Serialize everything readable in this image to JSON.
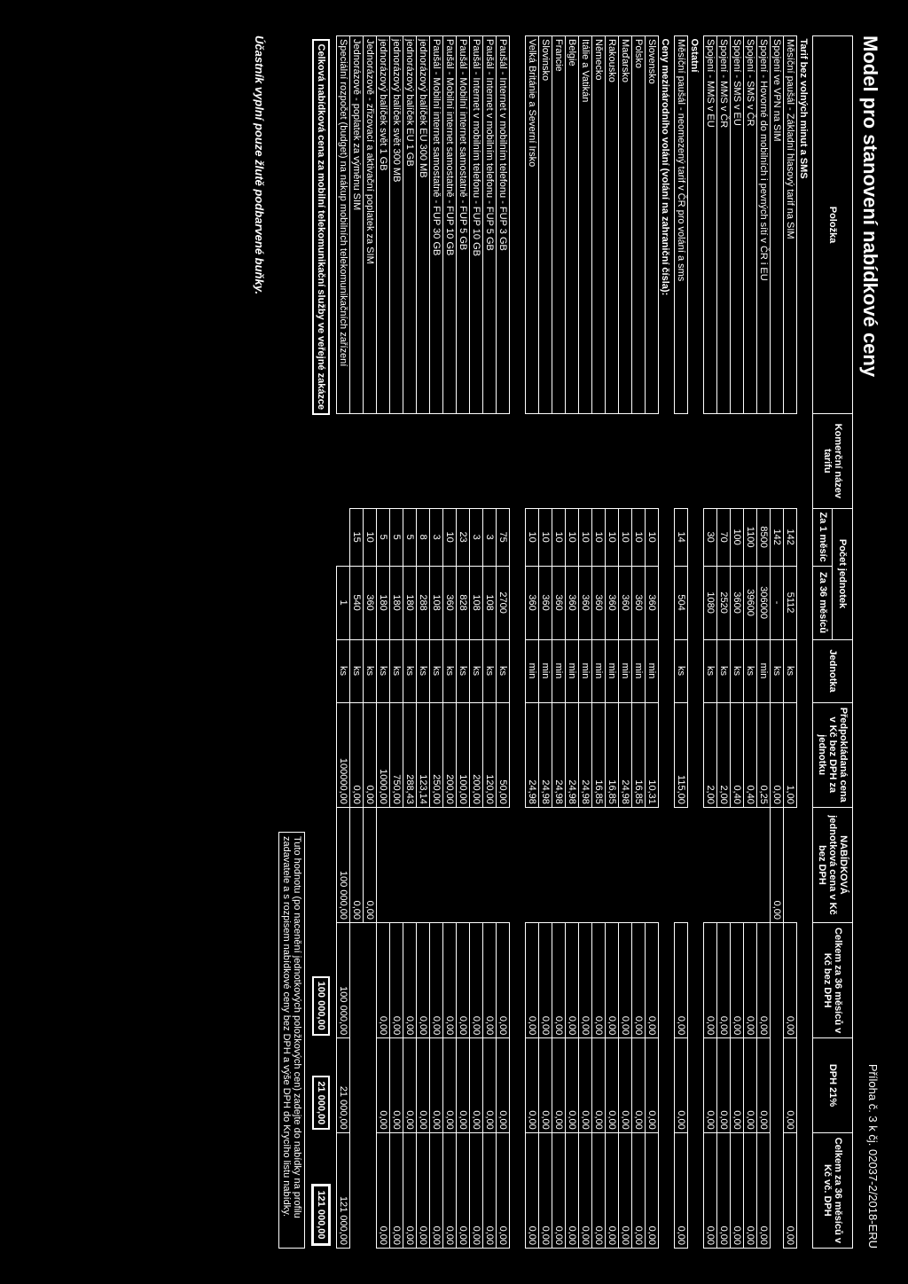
{
  "meta": {
    "title": "Model pro stanovení nabídkové ceny",
    "appendix": "Příloha č. 3 k čj. 02037-2/2018-ERU",
    "instruction": "Účastník vyplní pouze žlutě podbarvené buňky.",
    "footnote": "Tuto hodnotu (po nacenění jednotkových položkových cen) zadejte do nabídky na profilu zadavatele a s rozpisem nabídkové ceny bez DPH a výše DPH do Krycího listu nabídky.",
    "total_label": "Celková nabídková cena za mobilní telekomunikační služby ve veřejné zakázce"
  },
  "headers": {
    "polozka": "Položka",
    "komercni": "Komerční název tarifu",
    "pocet": "Počet jednotek",
    "za1": "Za 1 měsíc",
    "za36": "Za 36 měsíců",
    "jednotka": "Jednotka",
    "predpokladana": "Předpokládaná cena v Kč bez DPH za jednotku",
    "nabidkova": "NABÍDKOVÁ jednotková cena v Kč bez DPH",
    "celkem36bez": "Celkem za 36 měsíců v Kč bez DPH",
    "dph": "DPH 21%",
    "celkem36s": "Celkem za 36 měsíců v Kč vč. DPH"
  },
  "sections": [
    {
      "title": "Tarif bez volných minut a SMS",
      "rows": [
        {
          "label": "Měsíční paušál - Základní hlasový tarif na SIM",
          "m1": "142",
          "m36": "5112",
          "unit": "ks",
          "pred": "1,00",
          "nab": "",
          "c36": "0,00",
          "dph": "0,00",
          "c36s": "0,00"
        },
        {
          "label": "Spojení ve VPN na SIM",
          "m1": "142",
          "m36": "-",
          "unit": "ks",
          "pred": "0,00",
          "nab": "0,00",
          "c36": "",
          "dph": "",
          "c36s": ""
        },
        {
          "label": "Spojení - Hovorné do mobilních i pevných sítí v ČR i EU",
          "m1": "8500",
          "m36": "306000",
          "unit": "min",
          "pred": "0,25",
          "nab": "",
          "c36": "0,00",
          "dph": "0,00",
          "c36s": "0,00"
        },
        {
          "label": "Spojení - SMS v ČR",
          "m1": "1100",
          "m36": "39600",
          "unit": "ks",
          "pred": "0,40",
          "nab": "",
          "c36": "0,00",
          "dph": "0,00",
          "c36s": "0,00"
        },
        {
          "label": "Spojení - SMS v EU",
          "m1": "100",
          "m36": "3600",
          "unit": "ks",
          "pred": "0,40",
          "nab": "",
          "c36": "0,00",
          "dph": "0,00",
          "c36s": "0,00"
        },
        {
          "label": "Spojení - MMS v ČR",
          "m1": "70",
          "m36": "2520",
          "unit": "ks",
          "pred": "2,00",
          "nab": "",
          "c36": "0,00",
          "dph": "0,00",
          "c36s": "0,00"
        },
        {
          "label": "Spojení - MMS v EU",
          "m1": "30",
          "m36": "1080",
          "unit": "ks",
          "pred": "2,00",
          "nab": "",
          "c36": "0,00",
          "dph": "0,00",
          "c36s": "0,00"
        }
      ]
    },
    {
      "title": "Ostatní",
      "rows": [
        {
          "label": "Měsíční paušál - neomezený tarif v ČR pro volání a sms",
          "m1": "14",
          "m36": "504",
          "unit": "ks",
          "pred": "115,00",
          "nab": "",
          "c36": "0,00",
          "dph": "0,00",
          "c36s": "0,00"
        }
      ]
    },
    {
      "title": "Ceny mezinárodního volání (volání na zahraniční čísla):",
      "rows": [
        {
          "label": "Slovensko",
          "m1": "10",
          "m36": "360",
          "unit": "min",
          "pred": "10,31",
          "nab": "",
          "c36": "0,00",
          "dph": "0,00",
          "c36s": "0,00"
        },
        {
          "label": "Polsko",
          "m1": "10",
          "m36": "360",
          "unit": "min",
          "pred": "16,85",
          "nab": "",
          "c36": "0,00",
          "dph": "0,00",
          "c36s": "0,00"
        },
        {
          "label": "Maďarsko",
          "m1": "10",
          "m36": "360",
          "unit": "min",
          "pred": "24,98",
          "nab": "",
          "c36": "0,00",
          "dph": "0,00",
          "c36s": "0,00"
        },
        {
          "label": "Rakousko",
          "m1": "10",
          "m36": "360",
          "unit": "min",
          "pred": "16,85",
          "nab": "",
          "c36": "0,00",
          "dph": "0,00",
          "c36s": "0,00"
        },
        {
          "label": "Německo",
          "m1": "10",
          "m36": "360",
          "unit": "min",
          "pred": "16,85",
          "nab": "",
          "c36": "0,00",
          "dph": "0,00",
          "c36s": "0,00"
        },
        {
          "label": "Itálie a Vatikán",
          "m1": "10",
          "m36": "360",
          "unit": "min",
          "pred": "24,98",
          "nab": "",
          "c36": "0,00",
          "dph": "0,00",
          "c36s": "0,00"
        },
        {
          "label": "Belgie",
          "m1": "10",
          "m36": "360",
          "unit": "min",
          "pred": "24,98",
          "nab": "",
          "c36": "0,00",
          "dph": "0,00",
          "c36s": "0,00"
        },
        {
          "label": "Francie",
          "m1": "10",
          "m36": "360",
          "unit": "min",
          "pred": "24,98",
          "nab": "",
          "c36": "0,00",
          "dph": "0,00",
          "c36s": "0,00"
        },
        {
          "label": "Slovinsko",
          "m1": "10",
          "m36": "360",
          "unit": "min",
          "pred": "24,98",
          "nab": "",
          "c36": "0,00",
          "dph": "0,00",
          "c36s": "0,00"
        },
        {
          "label": "Velká Británie a Severní Irsko",
          "m1": "10",
          "m36": "360",
          "unit": "min",
          "pred": "24,98",
          "nab": "",
          "c36": "0,00",
          "dph": "0,00",
          "c36s": "0,00"
        }
      ]
    },
    {
      "title": "",
      "rows": [
        {
          "label": "Paušál - Internet v mobilním telefonu - FUP 3 GB",
          "m1": "75",
          "m36": "2700",
          "unit": "ks",
          "pred": "50,00",
          "nab": "",
          "c36": "0,00",
          "dph": "0,00",
          "c36s": "0,00"
        },
        {
          "label": "Paušál - Internet v mobilním telefonu - FUP 5 GB",
          "m1": "3",
          "m36": "108",
          "unit": "ks",
          "pred": "120,00",
          "nab": "",
          "c36": "0,00",
          "dph": "0,00",
          "c36s": "0,00"
        },
        {
          "label": "Paušál - Internet v mobilním telefonu - FUP 10 GB",
          "m1": "3",
          "m36": "108",
          "unit": "ks",
          "pred": "200,00",
          "nab": "",
          "c36": "0,00",
          "dph": "0,00",
          "c36s": "0,00"
        },
        {
          "label": "Paušál - Mobilní internet samostatně - FUP 5 GB",
          "m1": "23",
          "m36": "828",
          "unit": "ks",
          "pred": "100,00",
          "nab": "",
          "c36": "0,00",
          "dph": "0,00",
          "c36s": "0,00"
        },
        {
          "label": "Paušál - Mobilní internet samostatně - FUP 10 GB",
          "m1": "10",
          "m36": "360",
          "unit": "ks",
          "pred": "200,00",
          "nab": "",
          "c36": "0,00",
          "dph": "0,00",
          "c36s": "0,00"
        },
        {
          "label": "Paušál - Mobilní internet samostatně - FUP 30 GB",
          "m1": "3",
          "m36": "108",
          "unit": "ks",
          "pred": "250,00",
          "nab": "",
          "c36": "0,00",
          "dph": "0,00",
          "c36s": "0,00"
        },
        {
          "label": "jednorázový balíček EU 300 MB",
          "m1": "8",
          "m36": "288",
          "unit": "ks",
          "pred": "123,14",
          "nab": "",
          "c36": "0,00",
          "dph": "0,00",
          "c36s": "0,00"
        },
        {
          "label": "jednorázový balíček EU 1 GB",
          "m1": "5",
          "m36": "180",
          "unit": "ks",
          "pred": "288,43",
          "nab": "",
          "c36": "0,00",
          "dph": "0,00",
          "c36s": "0,00"
        },
        {
          "label": "jednorázový balíček svět 300 MB",
          "m1": "5",
          "m36": "180",
          "unit": "ks",
          "pred": "750,00",
          "nab": "",
          "c36": "0,00",
          "dph": "0,00",
          "c36s": "0,00"
        },
        {
          "label": "jednorázový balíček svět 1 GB",
          "m1": "5",
          "m36": "180",
          "unit": "ks",
          "pred": "1000,00",
          "nab": "",
          "c36": "0,00",
          "dph": "0,00",
          "c36s": "0,00"
        },
        {
          "label": "Jednorázově - zřizovací a aktivační poplatek za SIM",
          "m1": "10",
          "m36": "360",
          "unit": "ks",
          "pred": "0,00",
          "nab": "0,00",
          "c36": "",
          "dph": "",
          "c36s": ""
        },
        {
          "label": "Jednorázově - poplatek za výměnu SIM",
          "m1": "15",
          "m36": "540",
          "unit": "ks",
          "pred": "0,00",
          "nab": "0,00",
          "c36": "",
          "dph": "",
          "c36s": ""
        },
        {
          "label": "Speciální rozpočet (budget) na nákup mobilních telekomunikačních zařízení",
          "m1": "",
          "m36": "1",
          "unit": "ks",
          "pred": "100000,00",
          "nab": "100 000,00",
          "c36": "100 000,00",
          "dph": "21 000,00",
          "c36s": "121 000,00"
        }
      ]
    }
  ],
  "totals": {
    "c36": "100 000,00",
    "dph": "21 000,00",
    "c36s": "121 000,00"
  },
  "cols": {
    "polozka": 360,
    "komercni": 90,
    "m1": 55,
    "m36": 70,
    "unit": 60,
    "pred": 100,
    "nab": 110,
    "c36": 110,
    "dph": 90,
    "c36s": 110
  }
}
